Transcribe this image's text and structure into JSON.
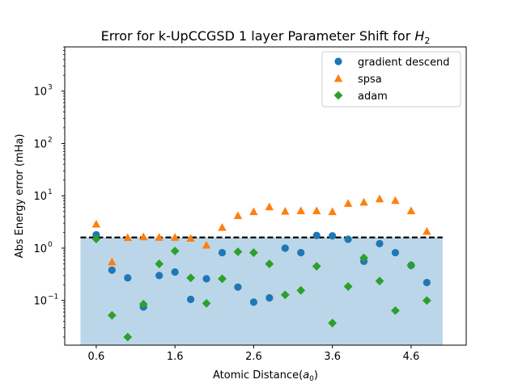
{
  "chart_data": {
    "type": "scatter",
    "title": "Error for k-UpCCGSD 1 layer Parameter Shift for",
    "title_math": "H",
    "title_math_sub": "2",
    "xlabel": "Atomic Distance(",
    "xlabel_math": "a",
    "xlabel_math_sub": "0",
    "xlabel_suffix": ")",
    "ylabel": "Abs Energy error (mHa)",
    "yscale": "log",
    "xlim": [
      0.2,
      5.3
    ],
    "ylim": [
      0.014,
      7000
    ],
    "xticks": [
      0.6,
      1.6,
      2.6,
      3.6,
      4.6
    ],
    "xtick_labels": [
      "0.6",
      "1.6",
      "2.6",
      "3.6",
      "4.6"
    ],
    "yticks": [
      0.1,
      1,
      10,
      100,
      1000
    ],
    "ytick_labels": [
      "10",
      "10",
      "10",
      "10",
      "10"
    ],
    "ytick_exponents": [
      "−1",
      "0",
      "1",
      "2",
      "3"
    ],
    "legend_position": "top-right",
    "threshold": {
      "y": 1.6,
      "x_range": [
        0.4,
        5.0
      ],
      "fill_color": "#1f77b4",
      "line_color": "#000000"
    },
    "series": [
      {
        "name": "gradient descend",
        "marker": "circle",
        "color": "#1f77b4",
        "x": [
          0.6,
          0.8,
          1.0,
          1.2,
          1.4,
          1.6,
          1.8,
          2.0,
          2.2,
          2.4,
          2.6,
          2.8,
          3.0,
          3.2,
          3.4,
          3.6,
          3.8,
          4.0,
          4.2,
          4.4,
          4.6,
          4.8
        ],
        "y": [
          1.8,
          0.38,
          0.27,
          0.075,
          0.3,
          0.35,
          0.105,
          0.26,
          0.82,
          0.18,
          0.093,
          0.112,
          1.0,
          0.82,
          1.75,
          1.72,
          1.48,
          0.56,
          1.22,
          0.82,
          0.47,
          0.22
        ]
      },
      {
        "name": "spsa",
        "marker": "triangle",
        "color": "#ff7f0e",
        "x": [
          0.6,
          0.8,
          1.0,
          1.2,
          1.4,
          1.6,
          1.8,
          2.0,
          2.2,
          2.4,
          2.6,
          2.8,
          3.0,
          3.2,
          3.4,
          3.6,
          3.8,
          4.0,
          4.2,
          4.4,
          4.6,
          4.8
        ],
        "y": [
          2.9,
          0.55,
          1.6,
          1.65,
          1.62,
          1.62,
          1.55,
          1.15,
          2.5,
          4.2,
          5.0,
          6.2,
          5.1,
          5.2,
          5.2,
          5.0,
          7.2,
          7.6,
          8.8,
          8.2,
          5.2,
          2.1
        ]
      },
      {
        "name": "adam",
        "marker": "diamond",
        "color": "#2ca02c",
        "x": [
          0.6,
          0.8,
          1.0,
          1.2,
          1.4,
          1.6,
          1.8,
          2.0,
          2.2,
          2.4,
          2.6,
          2.8,
          3.0,
          3.2,
          3.4,
          3.6,
          3.8,
          4.0,
          4.2,
          4.4,
          4.6,
          4.8
        ],
        "y": [
          1.5,
          0.052,
          0.02,
          0.085,
          0.5,
          0.88,
          0.27,
          0.088,
          0.26,
          0.85,
          0.82,
          0.5,
          0.128,
          0.156,
          0.45,
          0.037,
          0.185,
          0.65,
          0.235,
          0.064,
          0.47,
          0.1
        ]
      }
    ]
  }
}
